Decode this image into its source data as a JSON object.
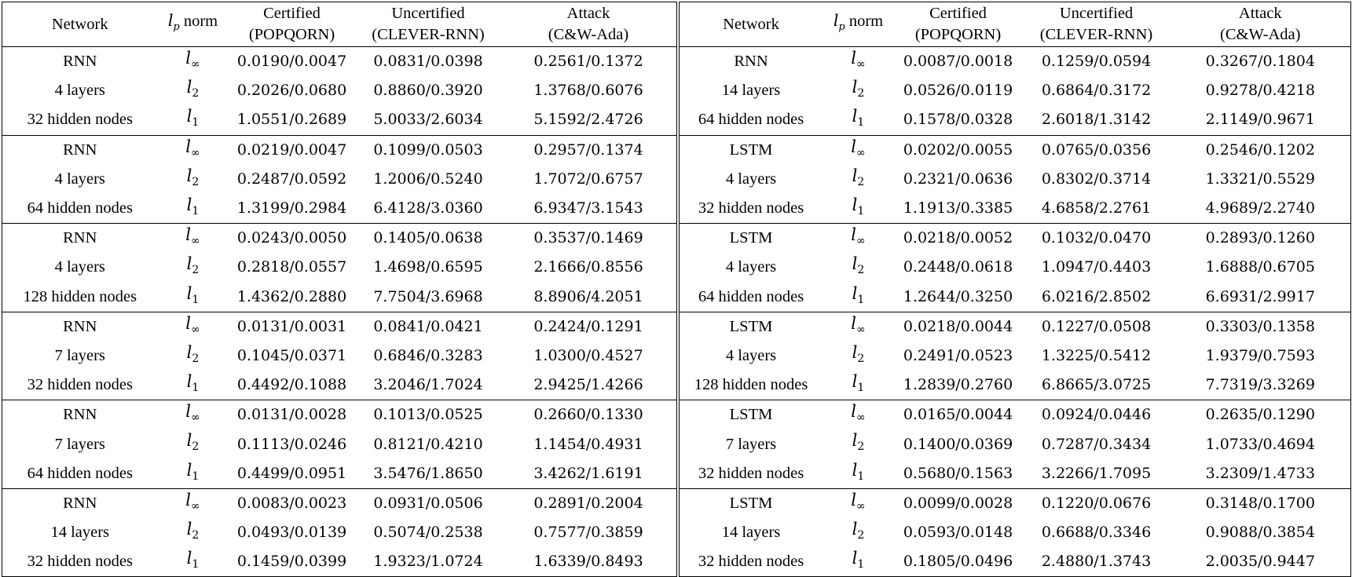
{
  "header": {
    "network": "Network",
    "norm_var": "l",
    "norm_sub": "p",
    "norm_label": "norm",
    "certified": "Certified",
    "certified_sub": "(POPQORN)",
    "uncertified": "Uncertified",
    "uncertified_sub": "(CLEVER-RNN)",
    "attack": "Attack",
    "attack_sub": "(C&W-Ada)"
  },
  "norms": [
    {
      "var": "l",
      "sub": "∞"
    },
    {
      "var": "l",
      "sub": "2"
    },
    {
      "var": "l",
      "sub": "1"
    }
  ],
  "left_groups": [
    {
      "net": [
        "RNN",
        "4 layers",
        "32 hidden nodes"
      ],
      "rows": [
        [
          "0.0190/0.0047",
          "0.0831/0.0398",
          "0.2561/0.1372"
        ],
        [
          "0.2026/0.0680",
          "0.8860/0.3920",
          "1.3768/0.6076"
        ],
        [
          "1.0551/0.2689",
          "5.0033/2.6034",
          "5.1592/2.4726"
        ]
      ]
    },
    {
      "net": [
        "RNN",
        "4 layers",
        "64 hidden nodes"
      ],
      "rows": [
        [
          "0.0219/0.0047",
          "0.1099/0.0503",
          "0.2957/0.1374"
        ],
        [
          "0.2487/0.0592",
          "1.2006/0.5240",
          "1.7072/0.6757"
        ],
        [
          "1.3199/0.2984",
          "6.4128/3.0360",
          "6.9347/3.1543"
        ]
      ]
    },
    {
      "net": [
        "RNN",
        "4 layers",
        "128 hidden nodes"
      ],
      "rows": [
        [
          "0.0243/0.0050",
          "0.1405/0.0638",
          "0.3537/0.1469"
        ],
        [
          "0.2818/0.0557",
          "1.4698/0.6595",
          "2.1666/0.8556"
        ],
        [
          "1.4362/0.2880",
          "7.7504/3.6968",
          "8.8906/4.2051"
        ]
      ]
    },
    {
      "net": [
        "RNN",
        "7 layers",
        "32 hidden nodes"
      ],
      "rows": [
        [
          "0.0131/0.0031",
          "0.0841/0.0421",
          "0.2424/0.1291"
        ],
        [
          "0.1045/0.0371",
          "0.6846/0.3283",
          "1.0300/0.4527"
        ],
        [
          "0.4492/0.1088",
          "3.2046/1.7024",
          "2.9425/1.4266"
        ]
      ]
    },
    {
      "net": [
        "RNN",
        "7 layers",
        "64 hidden nodes"
      ],
      "rows": [
        [
          "0.0131/0.0028",
          "0.1013/0.0525",
          "0.2660/0.1330"
        ],
        [
          "0.1113/0.0246",
          "0.8121/0.4210",
          "1.1454/0.4931"
        ],
        [
          "0.4499/0.0951",
          "3.5476/1.8650",
          "3.4262/1.6191"
        ]
      ]
    },
    {
      "net": [
        "RNN",
        "14 layers",
        "32 hidden nodes"
      ],
      "rows": [
        [
          "0.0083/0.0023",
          "0.0931/0.0506",
          "0.2891/0.2004"
        ],
        [
          "0.0493/0.0139",
          "0.5074/0.2538",
          "0.7577/0.3859"
        ],
        [
          "0.1459/0.0399",
          "1.9323/1.0724",
          "1.6339/0.8493"
        ]
      ]
    }
  ],
  "right_groups": [
    {
      "net": [
        "RNN",
        "14 layers",
        "64 hidden nodes"
      ],
      "rows": [
        [
          "0.0087/0.0018",
          "0.1259/0.0594",
          "0.3267/0.1804"
        ],
        [
          "0.0526/0.0119",
          "0.6864/0.3172",
          "0.9278/0.4218"
        ],
        [
          "0.1578/0.0328",
          "2.6018/1.3142",
          "2.1149/0.9671"
        ]
      ]
    },
    {
      "net": [
        "LSTM",
        "4 layers",
        "32 hidden nodes"
      ],
      "rows": [
        [
          "0.0202/0.0055",
          "0.0765/0.0356",
          "0.2546/0.1202"
        ],
        [
          "0.2321/0.0636",
          "0.8302/0.3714",
          "1.3321/0.5529"
        ],
        [
          "1.1913/0.3385",
          "4.6858/2.2761",
          "4.9689/2.2740"
        ]
      ]
    },
    {
      "net": [
        "LSTM",
        "4 layers",
        "64 hidden nodes"
      ],
      "rows": [
        [
          "0.0218/0.0052",
          "0.1032/0.0470",
          "0.2893/0.1260"
        ],
        [
          "0.2448/0.0618",
          "1.0947/0.4403",
          "1.6888/0.6705"
        ],
        [
          "1.2644/0.3250",
          "6.0216/2.8502",
          "6.6931/2.9917"
        ]
      ]
    },
    {
      "net": [
        "LSTM",
        "4 layers",
        "128 hidden nodes"
      ],
      "rows": [
        [
          "0.0218/0.0044",
          "0.1227/0.0508",
          "0.3303/0.1358"
        ],
        [
          "0.2491/0.0523",
          "1.3225/0.5412",
          "1.9379/0.7593"
        ],
        [
          "1.2839/0.2760",
          "6.8665/3.0725",
          "7.7319/3.3269"
        ]
      ]
    },
    {
      "net": [
        "LSTM",
        "7 layers",
        "32 hidden nodes"
      ],
      "rows": [
        [
          "0.0165/0.0044",
          "0.0924/0.0446",
          "0.2635/0.1290"
        ],
        [
          "0.1400/0.0369",
          "0.7287/0.3434",
          "1.0733/0.4694"
        ],
        [
          "0.5680/0.1563",
          "3.2266/1.7095",
          "3.2309/1.4733"
        ]
      ]
    },
    {
      "net": [
        "LSTM",
        "14 layers",
        "32 hidden nodes"
      ],
      "rows": [
        [
          "0.0099/0.0028",
          "0.1220/0.0676",
          "0.3148/0.1700"
        ],
        [
          "0.0593/0.0148",
          "0.6688/0.3346",
          "0.9088/0.3854"
        ],
        [
          "0.1805/0.0496",
          "2.4880/1.3743",
          "2.0035/0.9447"
        ]
      ]
    }
  ]
}
